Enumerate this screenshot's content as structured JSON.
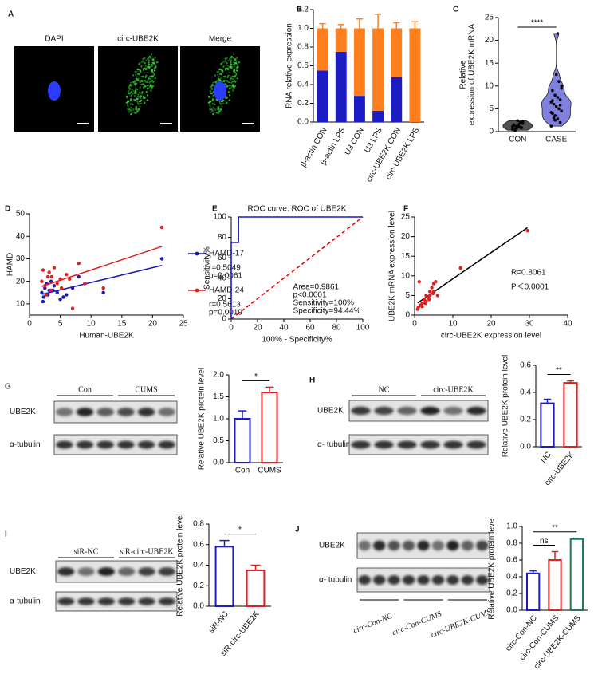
{
  "panel_labels": [
    "A",
    "B",
    "C",
    "D",
    "E",
    "F",
    "G",
    "H",
    "I",
    "J"
  ],
  "micrographs": [
    "DAPI",
    "circ-UBE2K",
    "Merge"
  ],
  "blots": [
    {
      "groups": [
        "Con",
        "CUMS"
      ],
      "rows": [
        "UBE2K",
        "α-tubulin"
      ]
    },
    {
      "groups": [
        "NC",
        "circ-UBE2K"
      ],
      "rows": [
        "UBE2K",
        "α- tubulin"
      ]
    },
    {
      "groups": [
        "siR-NC",
        "siR-circ-UBE2K"
      ],
      "rows": [
        "UBE2K",
        "α-tubulin"
      ]
    },
    {
      "groups": [
        "circ-Con-NC",
        "circ-Con-CUMS",
        "circ-UBE2K-CUMS"
      ],
      "rows": [
        "UBE2K",
        "α- tubulin"
      ]
    }
  ],
  "chart_data": [
    {
      "type": "stacked_bar",
      "y_label": "RNA relative expression",
      "categories": [
        "β-actin CON",
        "β-actin LPS",
        "U3 CON",
        "U3 LPS",
        "circ-UBE2K CON",
        "circ-UBE2K LPS"
      ],
      "series": [
        {
          "color": "#1c1cc4",
          "values": [
            0.55,
            0.75,
            0.28,
            0.12,
            0.48,
            0
          ],
          "errors": [
            0.08,
            0.03,
            0.03,
            0.01,
            0.02,
            0
          ]
        },
        {
          "color": "#ff7f1e",
          "values": [
            0.45,
            0.25,
            0.72,
            0.88,
            0.52,
            1
          ],
          "errors": [
            0.05,
            0.04,
            0.1,
            0.15,
            0.06,
            0.07
          ]
        }
      ],
      "ylim": [
        0,
        1.2
      ],
      "yticks": [
        {
          "value": 0,
          "label": "0.0"
        },
        0.2,
        0.4,
        0.6,
        0.8,
        {
          "value": 1,
          "label": "1.0"
        },
        1.2
      ]
    },
    {
      "type": "violin",
      "y_label": [
        "Relative",
        "expression of UBE2K mRNA"
      ],
      "categories": [
        "CON",
        "CASE"
      ],
      "values": [
        [
          0.5,
          0.8,
          1.0,
          1.2,
          1.5,
          1.8,
          2.0,
          2.4,
          0.3,
          1.1,
          0.9,
          1.6,
          0.7,
          1.3,
          2.2
        ],
        [
          1.2,
          2.0,
          2.8,
          3.5,
          4.0,
          4.5,
          5.0,
          5.5,
          6.0,
          6.5,
          7.0,
          7.5,
          8.0,
          9.0,
          10.0,
          11.0,
          12.5,
          3.0,
          4.2,
          5.8,
          21.5,
          2.5,
          6.8,
          9.5
        ]
      ],
      "colors": [
        "#333333",
        "#6a6ad8"
      ],
      "ylim": [
        0,
        25
      ],
      "yticks": [
        0,
        5,
        10,
        15,
        20,
        25
      ],
      "comparisons": [
        {
          "label": "****",
          "groups": [
            "CON",
            "CASE"
          ]
        }
      ]
    },
    {
      "type": "scatter",
      "x_label": "Human-UBE2K",
      "y_label": "HAMD",
      "xlim": [
        0,
        25
      ],
      "xticks": [
        0,
        5,
        10,
        15,
        20,
        25
      ],
      "ylim": [
        5,
        50
      ],
      "yticks": [
        10,
        20,
        30,
        40,
        50
      ],
      "fit": true,
      "legend": "right",
      "series": [
        {
          "name": "HAMD-17",
          "color": "#1a1ab5",
          "stats": [
            "r=0.5049",
            "p=0.0061"
          ],
          "x": [
            2,
            2.3,
            2.5,
            2.8,
            3,
            3.2,
            3.5,
            4,
            4.5,
            5,
            6,
            7,
            8,
            9,
            12,
            21.5,
            2.2,
            3.8,
            5.5
          ],
          "values": [
            15,
            13,
            17,
            19,
            14,
            16,
            20,
            18,
            15,
            12,
            14,
            17,
            22,
            19,
            15,
            30,
            11,
            16,
            13
          ]
        },
        {
          "name": "HAMD-24",
          "color": "#e02020",
          "stats": [
            "r=0.5613",
            "p=0.0019"
          ],
          "x": [
            2,
            2.2,
            2.5,
            3,
            3.2,
            3.5,
            4,
            4.5,
            5,
            6,
            7,
            8,
            9,
            12,
            21.5,
            2.7,
            3.6,
            5.2,
            6.5
          ],
          "values": [
            20,
            25,
            18,
            22,
            24,
            16,
            26,
            19,
            21,
            23,
            8,
            28,
            19,
            17,
            44,
            14,
            22,
            17,
            21
          ]
        }
      ]
    },
    {
      "type": "line",
      "title": "ROC curve: ROC of UBE2K",
      "x_label": "100% - Specificity%",
      "y_label": "Sensitivity%",
      "xlim": [
        0,
        100
      ],
      "xticks": [
        0,
        20,
        40,
        60,
        80,
        100
      ],
      "ylim": [
        0,
        100
      ],
      "yticks": [
        0,
        20,
        40,
        60,
        80,
        100
      ],
      "series": [
        {
          "color": "#1c1cc4",
          "x": [
            0,
            0,
            5.56,
            5.56,
            100
          ],
          "values": [
            0,
            75,
            75,
            100,
            100
          ]
        }
      ],
      "reference_color": "#e00000",
      "annotations": [
        "Area=0.9861",
        "p<0.0001",
        "Sensitivity=100%",
        "Specificity=94.44%"
      ]
    },
    {
      "type": "scatter",
      "x_label": "circ-UBE2K expression level",
      "y_label": "UBE2K mRNA expression level",
      "xlim": [
        0,
        40
      ],
      "xticks": [
        0,
        10,
        20,
        30,
        40
      ],
      "ylim": [
        0,
        25
      ],
      "yticks": [
        0,
        5,
        10,
        15,
        20,
        25
      ],
      "fit": true,
      "fit_color": "#000000",
      "series": [
        {
          "color": "#e02020",
          "x": [
            1,
            1.5,
            2,
            2.5,
            3,
            3,
            3.5,
            4,
            4,
            4.5,
            5,
            5,
            5.5,
            2,
            1.2,
            3.8,
            4.8,
            12,
            29.5,
            0.8,
            2.8,
            6
          ],
          "values": [
            2,
            2.5,
            3,
            4,
            3.5,
            5,
            4.5,
            5,
            6,
            7,
            6,
            8,
            8.5,
            2.2,
            8.5,
            4,
            5.5,
            12,
            21.5,
            1.5,
            3,
            5
          ]
        }
      ],
      "annotations": [
        "R=0.8061",
        "P＜0.0001"
      ]
    },
    {
      "type": "bar",
      "y_label": "Relative UBE2K protein level",
      "categories": [
        "Con",
        "CUMS"
      ],
      "values": [
        1.0,
        1.6
      ],
      "errors": [
        0.18,
        0.12
      ],
      "colors": [
        "#1c1cc4",
        "#e02020"
      ],
      "ylim": [
        0,
        2
      ],
      "yticks": [
        {
          "value": 0,
          "label": "0.0"
        },
        0.5,
        {
          "value": 1,
          "label": "1.0"
        },
        1.5,
        {
          "value": 2,
          "label": "2.0"
        }
      ],
      "comparisons": [
        {
          "label": "*",
          "groups": [
            "Con",
            "CUMS"
          ]
        }
      ]
    },
    {
      "type": "bar",
      "y_label": "Relative UBE2K protein level",
      "categories": [
        "NC",
        "circ-UBE2K"
      ],
      "values": [
        0.32,
        0.47
      ],
      "errors": [
        0.03,
        0.015
      ],
      "colors": [
        "#1c1cc4",
        "#e02020"
      ],
      "ylim": [
        0,
        0.6
      ],
      "yticks": [
        {
          "value": 0,
          "label": "0.0"
        },
        0.2,
        0.4,
        0.6
      ],
      "comparisons": [
        {
          "label": "**",
          "groups": [
            "NC",
            "circ-UBE2K"
          ]
        }
      ]
    },
    {
      "type": "bar",
      "y_label": "Relative UBE2K protein level",
      "categories": [
        "siR-NC",
        "siR-circ-UBE2K"
      ],
      "values": [
        0.58,
        0.35
      ],
      "errors": [
        0.06,
        0.05
      ],
      "colors": [
        "#1c1cc4",
        "#e02020"
      ],
      "ylim": [
        0,
        0.8
      ],
      "yticks": [
        {
          "value": 0,
          "label": "0.0"
        },
        0.2,
        0.4,
        0.6,
        0.8
      ],
      "comparisons": [
        {
          "label": "*",
          "groups": [
            "siR-NC",
            "siR-circ-UBE2K"
          ]
        }
      ]
    },
    {
      "type": "bar",
      "y_label": "Relative UBE2K protein level",
      "categories": [
        "circ-Con-NC",
        "circ-Con-CUMS",
        "circ-UBE2K-CUMS"
      ],
      "values": [
        0.44,
        0.6,
        0.85
      ],
      "errors": [
        0.03,
        0.1,
        0.01
      ],
      "colors": [
        "#1c1cc4",
        "#e02020",
        "#1f7a5a"
      ],
      "ylim": [
        0,
        1
      ],
      "yticks": [
        {
          "value": 0,
          "label": "0.0"
        },
        0.2,
        0.4,
        0.6,
        0.8,
        {
          "value": 1,
          "label": "1.0"
        }
      ],
      "comparisons": [
        {
          "label": "ns",
          "groups": [
            "circ-Con-NC",
            "circ-Con-CUMS"
          ]
        },
        {
          "label": "**",
          "groups": [
            "circ-Con-NC",
            "circ-UBE2K-CUMS"
          ]
        }
      ]
    }
  ]
}
